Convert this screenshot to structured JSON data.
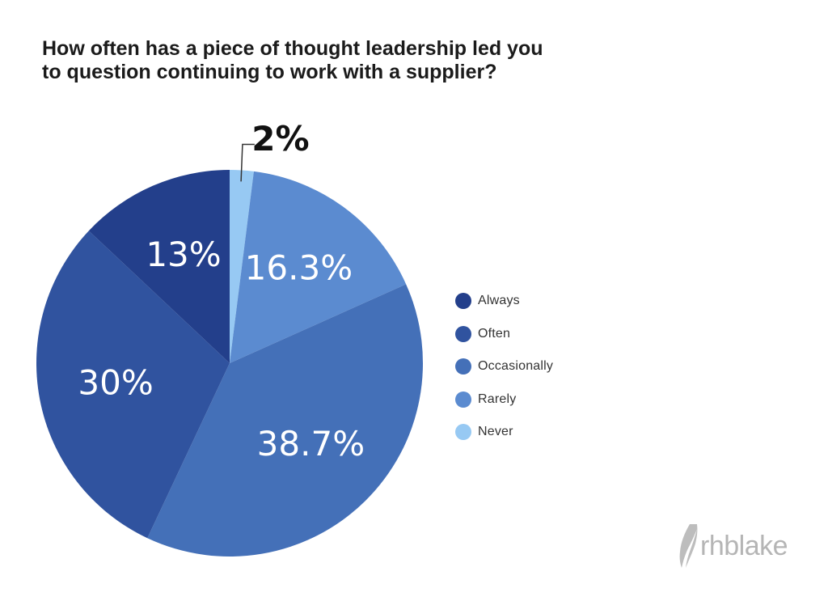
{
  "title_lines": [
    "How often has a piece of thought leadership led you",
    "to question continuing to work with a supplier?"
  ],
  "chart_data": {
    "type": "pie",
    "title": "How often has a piece of thought leadership led you to question continuing to work with a supplier?",
    "start": "12 o'clock, clockwise",
    "legend_position": "right",
    "slices": [
      {
        "name": "Never",
        "value": 2,
        "label": "2%",
        "color": "#97c9f3",
        "label_outside": true
      },
      {
        "name": "Rarely",
        "value": 16.3,
        "label": "16.3%",
        "color": "#5b8bd0"
      },
      {
        "name": "Occasionally",
        "value": 38.7,
        "label": "38.7%",
        "color": "#4470b8"
      },
      {
        "name": "Often",
        "value": 30,
        "label": "30%",
        "color": "#30539f"
      },
      {
        "name": "Always",
        "value": 13,
        "label": "13%",
        "color": "#233f8b"
      }
    ],
    "legend": [
      {
        "name": "Always",
        "color": "#233f8b"
      },
      {
        "name": "Often",
        "color": "#30539f"
      },
      {
        "name": "Occasionally",
        "color": "#4470b8"
      },
      {
        "name": "Rarely",
        "color": "#5b8bd0"
      },
      {
        "name": "Never",
        "color": "#97c9f3"
      }
    ]
  },
  "logo": {
    "text": "rhblake",
    "color": "#b5b5b5"
  }
}
